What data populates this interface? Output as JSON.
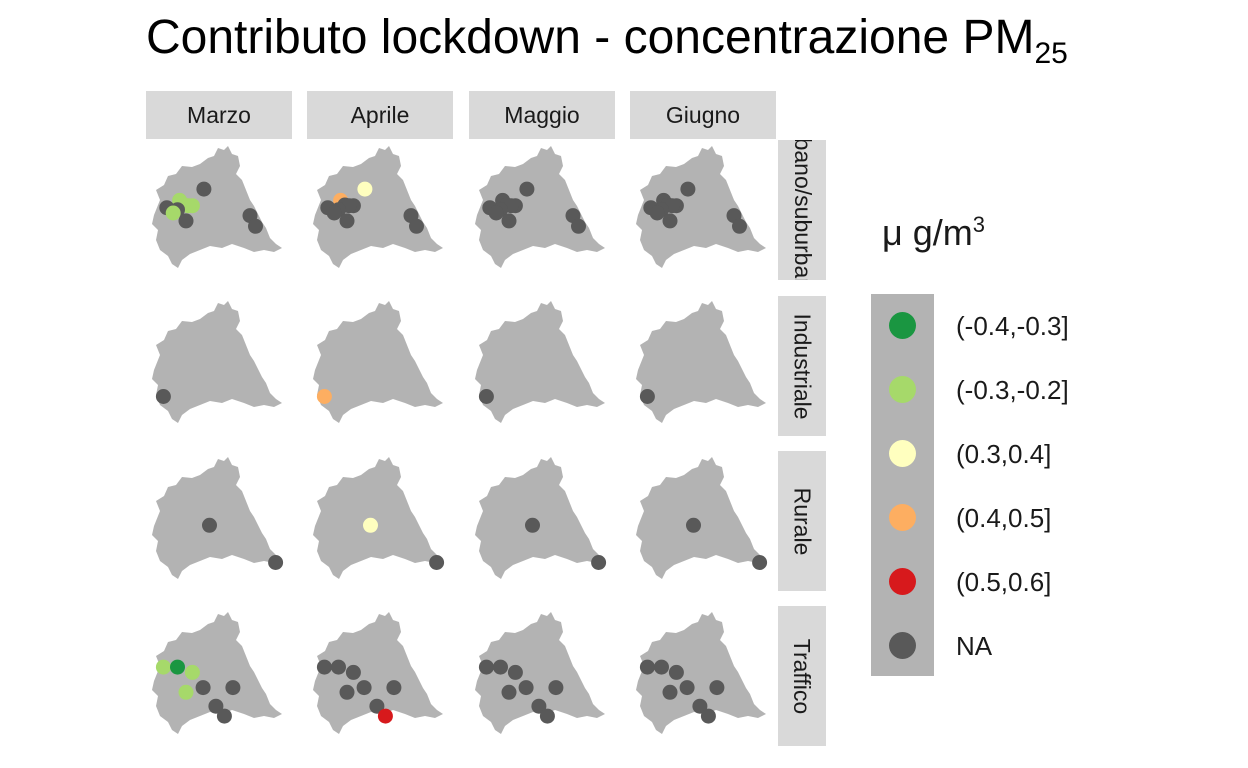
{
  "chart_data": {
    "type": "scatter",
    "title_main": "Contributo lockdown - concentrazione PM",
    "title_sub": "25",
    "months": [
      "Marzo",
      "Aprile",
      "Maggio",
      "Giugno"
    ],
    "site_types": [
      "urbano/suburbano",
      "Industriale",
      "Rurale",
      "Traffico"
    ],
    "legend": {
      "title_main": "μ g/m",
      "title_sup": "3",
      "items": [
        {
          "label": "(-0.4,-0.3]",
          "color": "#1a9641"
        },
        {
          "label": "(-0.3,-0.2]",
          "color": "#a6d96a"
        },
        {
          "label": "(0.3,0.4]",
          "color": "#ffffbf"
        },
        {
          "label": "(0.4,0.5]",
          "color": "#fdae61"
        },
        {
          "label": "(0.5,0.6]",
          "color": "#d7191c"
        },
        {
          "label": "NA",
          "color": "#595959"
        }
      ]
    },
    "region_color": "#b3b3b3",
    "strip_color": "#d9d9d9",
    "stations": {
      "urbano/suburbano": [
        {
          "lon": 9.67,
          "lat": 45.98,
          "class": [
            "NA",
            "(0.3,0.4]",
            "NA",
            "NA"
          ]
        },
        {
          "lon": 9.1,
          "lat": 45.81,
          "class": [
            "(-0.3,-0.2]",
            "(0.4,0.5]",
            "NA",
            "NA"
          ]
        },
        {
          "lon": 9.2,
          "lat": 45.74,
          "class": [
            "(-0.3,-0.2]",
            "NA",
            "NA",
            "NA"
          ]
        },
        {
          "lon": 9.4,
          "lat": 45.73,
          "class": [
            "(-0.3,-0.2]",
            "NA",
            "NA",
            "NA"
          ]
        },
        {
          "lon": 9.3,
          "lat": 45.73,
          "class": [
            "(-0.3,-0.2]",
            "NA",
            "NA",
            "NA"
          ]
        },
        {
          "lon": 8.8,
          "lat": 45.7,
          "class": [
            "NA",
            "NA",
            "NA",
            "NA"
          ]
        },
        {
          "lon": 9.05,
          "lat": 45.67,
          "class": [
            "NA",
            "NA",
            "NA",
            "NA"
          ]
        },
        {
          "lon": 8.95,
          "lat": 45.62,
          "class": [
            "(-0.3,-0.2]",
            "NA",
            "NA",
            "NA"
          ]
        },
        {
          "lon": 9.25,
          "lat": 45.5,
          "class": [
            "NA",
            "NA",
            "NA",
            "NA"
          ]
        },
        {
          "lon": 10.75,
          "lat": 45.58,
          "class": [
            "NA",
            "NA",
            "NA",
            "NA"
          ]
        },
        {
          "lon": 10.88,
          "lat": 45.42,
          "class": [
            "NA",
            "NA",
            "NA",
            "NA"
          ]
        }
      ],
      "Industriale": [
        {
          "lon": 8.72,
          "lat": 45.19,
          "class": [
            "NA",
            "(0.4,0.5]",
            "NA",
            "NA"
          ]
        }
      ],
      "Rurale": [
        {
          "lon": 9.8,
          "lat": 45.6,
          "class": [
            "NA",
            "(0.3,0.4]",
            "NA",
            "NA"
          ]
        },
        {
          "lon": 11.35,
          "lat": 45.04,
          "class": [
            "NA",
            "NA",
            "NA",
            "NA"
          ]
        }
      ],
      "Traffico": [
        {
          "lon": 8.72,
          "lat": 45.8,
          "class": [
            "(-0.3,-0.2]",
            "NA",
            "NA",
            "NA"
          ]
        },
        {
          "lon": 9.05,
          "lat": 45.8,
          "class": [
            "(-0.4,-0.3]",
            "NA",
            "NA",
            "NA"
          ]
        },
        {
          "lon": 9.4,
          "lat": 45.72,
          "class": [
            "(-0.3,-0.2]",
            "NA",
            "NA",
            "NA"
          ]
        },
        {
          "lon": 9.65,
          "lat": 45.49,
          "class": [
            "NA",
            "NA",
            "NA",
            "NA"
          ]
        },
        {
          "lon": 9.25,
          "lat": 45.42,
          "class": [
            "(-0.3,-0.2]",
            "NA",
            "NA",
            "NA"
          ]
        },
        {
          "lon": 10.35,
          "lat": 45.49,
          "class": [
            "NA",
            "NA",
            "NA",
            "NA"
          ]
        },
        {
          "lon": 9.95,
          "lat": 45.21,
          "class": [
            "NA",
            "NA",
            "NA",
            "NA"
          ]
        },
        {
          "lon": 10.15,
          "lat": 45.06,
          "class": [
            "NA",
            "(0.5,0.6]",
            "NA",
            "NA"
          ]
        }
      ]
    }
  }
}
